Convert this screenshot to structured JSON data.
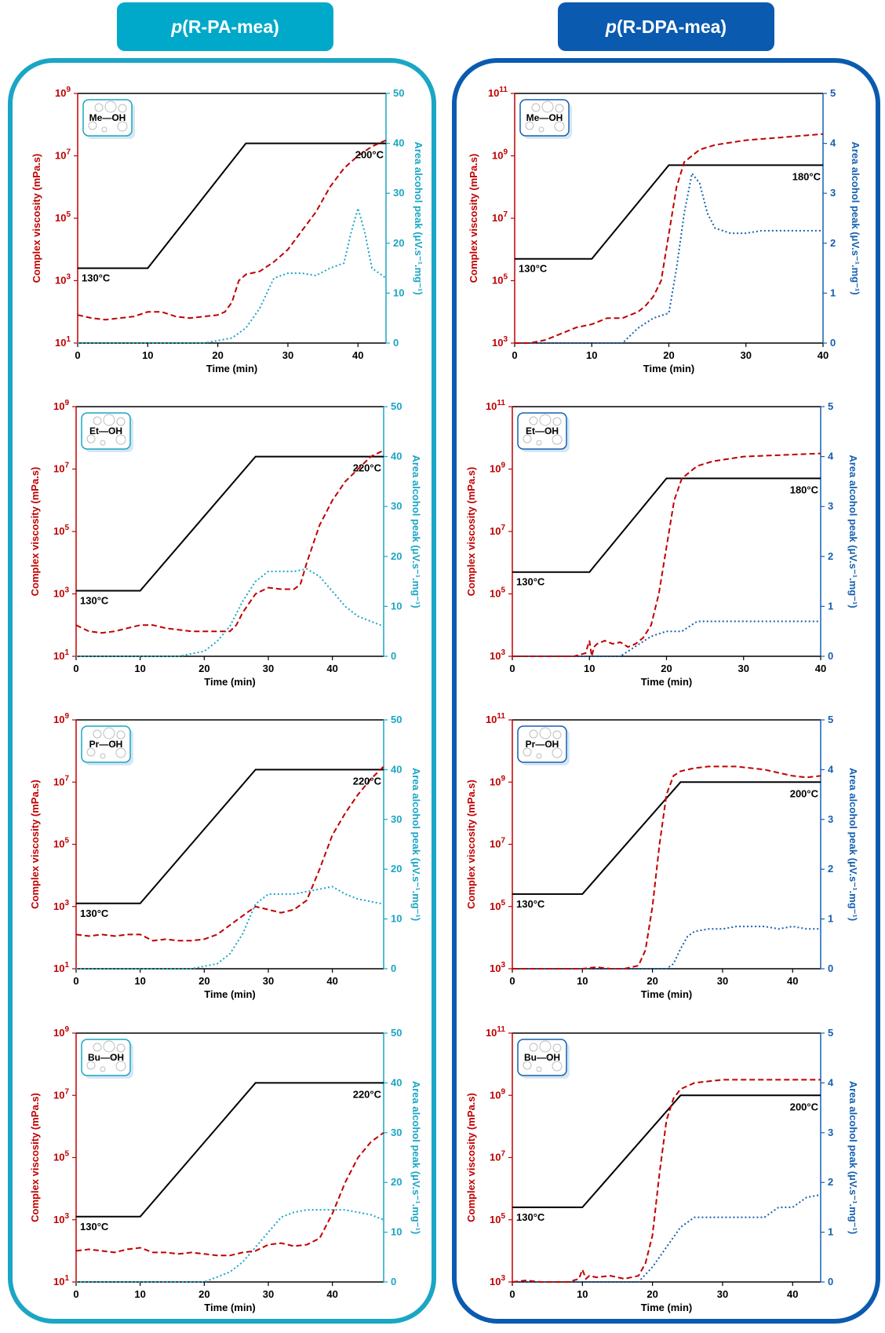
{
  "header": {
    "left": {
      "prefix": "p",
      "label": "(R-PA-mea)",
      "color": "#00a7c7"
    },
    "right": {
      "prefix": "p",
      "label": "(R-DPA-mea)",
      "color": "#0a5bb0"
    }
  },
  "colors": {
    "viscosity": "#c00000",
    "temperature": "#000000",
    "alcohol_left": "#1aa6c4",
    "alcohol_right": "#1560b0"
  },
  "chart_data": [
    {
      "type": "line",
      "panel": "R-PA-mea Me-OH",
      "badge": "Me—OH",
      "xlabel": "Time (min)",
      "ylabel": "Complex viscosity (mPa.s)",
      "y2label": "Area alcohol peak (μV.s⁻¹.mg⁻¹)",
      "xlim": [
        0,
        44
      ],
      "xticks": [
        0,
        10,
        20,
        30,
        40
      ],
      "ylim_log": [
        1,
        9
      ],
      "yticks_log": [
        1,
        3,
        5,
        7,
        9
      ],
      "y2lim": [
        0,
        50
      ],
      "y2ticks": [
        0,
        10,
        20,
        30,
        40,
        50
      ],
      "temp_labels": {
        "start": "130°C",
        "end": "200°C"
      },
      "temperature": {
        "x": [
          0,
          10,
          24,
          44
        ],
        "logy": [
          3.4,
          3.4,
          7.4,
          7.4
        ]
      },
      "viscosity": {
        "x": [
          0,
          2,
          4,
          6,
          8,
          10,
          12,
          14,
          16,
          18,
          20,
          21,
          22,
          23,
          24,
          26,
          28,
          30,
          32,
          34,
          36,
          38,
          40,
          42,
          44
        ],
        "logy": [
          1.9,
          1.8,
          1.75,
          1.8,
          1.85,
          2.0,
          2.0,
          1.85,
          1.8,
          1.85,
          1.9,
          2.0,
          2.3,
          3.0,
          3.2,
          3.3,
          3.6,
          4.0,
          4.6,
          5.2,
          6.0,
          6.6,
          7.0,
          7.3,
          7.5
        ]
      },
      "alcohol": {
        "x": [
          0,
          14,
          18,
          22,
          24,
          26,
          28,
          30,
          32,
          34,
          36,
          37,
          38,
          39,
          40,
          41,
          42,
          44
        ],
        "y": [
          0,
          0,
          0,
          1,
          3,
          7,
          13,
          14,
          14,
          13.5,
          15,
          15.5,
          16,
          22,
          27,
          22,
          15,
          13
        ]
      }
    },
    {
      "type": "line",
      "panel": "R-DPA-mea Me-OH",
      "badge": "Me—OH",
      "xlabel": "Time (min)",
      "ylabel": "Complex viscosity (mPa.s)",
      "y2label": "Area alcohol peak (μV.s⁻¹.mg⁻¹)",
      "xlim": [
        0,
        40
      ],
      "xticks": [
        0,
        10,
        20,
        30,
        40
      ],
      "ylim_log": [
        3,
        11
      ],
      "yticks_log": [
        3,
        5,
        7,
        9,
        11
      ],
      "y2lim": [
        0,
        5
      ],
      "y2ticks": [
        0,
        1,
        2,
        3,
        4,
        5
      ],
      "temp_labels": {
        "start": "130°C",
        "end": "180°C"
      },
      "temperature": {
        "x": [
          0,
          10,
          20,
          40
        ],
        "logy": [
          5.7,
          5.7,
          8.7,
          8.7
        ]
      },
      "viscosity": {
        "x": [
          0,
          2,
          4,
          6,
          8,
          10,
          12,
          14,
          16,
          17,
          18,
          19,
          20,
          21,
          22,
          24,
          26,
          30,
          35,
          40
        ],
        "logy": [
          3.0,
          3.0,
          3.1,
          3.3,
          3.5,
          3.6,
          3.8,
          3.8,
          4.0,
          4.2,
          4.5,
          5.0,
          6.5,
          8.0,
          8.8,
          9.2,
          9.35,
          9.5,
          9.6,
          9.7
        ]
      },
      "alcohol": {
        "x": [
          0,
          14,
          16,
          18,
          20,
          21,
          22,
          23,
          24,
          25,
          26,
          28,
          30,
          32,
          35,
          40
        ],
        "y": [
          0,
          0,
          0.3,
          0.5,
          0.6,
          1.5,
          2.6,
          3.4,
          3.2,
          2.6,
          2.3,
          2.2,
          2.2,
          2.25,
          2.25,
          2.25
        ]
      }
    },
    {
      "type": "line",
      "panel": "R-PA-mea Et-OH",
      "badge": "Et—OH",
      "xlabel": "Time (min)",
      "ylabel": "Complex viscosity (mPa.s)",
      "y2label": "Area alcohol peak (μV.s⁻¹.mg⁻¹)",
      "xlim": [
        0,
        48
      ],
      "xticks": [
        0,
        10,
        20,
        30,
        40
      ],
      "ylim_log": [
        1,
        9
      ],
      "yticks_log": [
        1,
        3,
        5,
        7,
        9
      ],
      "y2lim": [
        0,
        50
      ],
      "y2ticks": [
        0,
        10,
        20,
        30,
        40,
        50
      ],
      "temp_labels": {
        "start": "130°C",
        "end": "220°C"
      },
      "temperature": {
        "x": [
          0,
          10,
          28,
          48
        ],
        "logy": [
          3.1,
          3.1,
          7.4,
          7.4
        ]
      },
      "viscosity": {
        "x": [
          0,
          2,
          4,
          6,
          8,
          10,
          12,
          14,
          16,
          18,
          20,
          22,
          24,
          25,
          26,
          28,
          30,
          32,
          34,
          35,
          36,
          38,
          40,
          42,
          44,
          46,
          48
        ],
        "logy": [
          2.0,
          1.8,
          1.75,
          1.8,
          1.9,
          2.0,
          2.0,
          1.9,
          1.85,
          1.8,
          1.8,
          1.8,
          1.8,
          2.0,
          2.4,
          3.0,
          3.2,
          3.15,
          3.15,
          3.3,
          4.0,
          5.2,
          6.0,
          6.6,
          7.0,
          7.4,
          7.6
        ]
      },
      "alcohol": {
        "x": [
          0,
          14,
          16,
          20,
          22,
          24,
          26,
          28,
          30,
          32,
          34,
          36,
          38,
          40,
          42,
          44,
          46,
          48
        ],
        "y": [
          0,
          0,
          0,
          1,
          3,
          6,
          11,
          15,
          17,
          17,
          17,
          17.5,
          16,
          13,
          10,
          8,
          7,
          6
        ]
      }
    },
    {
      "type": "line",
      "panel": "R-DPA-mea Et-OH",
      "badge": "Et—OH",
      "xlabel": "Time (min)",
      "ylabel": "Complex viscosity (mPa.s)",
      "y2label": "Area alcohol peak (μV.s⁻¹.mg⁻¹)",
      "xlim": [
        0,
        40
      ],
      "xticks": [
        0,
        10,
        20,
        30,
        40
      ],
      "ylim_log": [
        3,
        11
      ],
      "yticks_log": [
        3,
        5,
        7,
        9,
        11
      ],
      "y2lim": [
        0,
        5
      ],
      "y2ticks": [
        0,
        1,
        2,
        3,
        4,
        5
      ],
      "temp_labels": {
        "start": "130°C",
        "end": "180°C"
      },
      "temperature": {
        "x": [
          0,
          10,
          20,
          40
        ],
        "logy": [
          5.7,
          5.7,
          8.7,
          8.7
        ]
      },
      "viscosity": {
        "x": [
          0,
          5,
          8,
          9.5,
          10,
          10.3,
          10.6,
          11,
          12,
          13,
          14,
          15,
          16,
          17,
          18,
          19,
          20,
          21,
          22,
          24,
          26,
          30,
          35,
          40
        ],
        "logy": [
          3.0,
          3.0,
          3.0,
          3.1,
          3.5,
          3.0,
          3.3,
          3.4,
          3.5,
          3.4,
          3.45,
          3.3,
          3.4,
          3.6,
          4.0,
          5.0,
          6.5,
          8.0,
          8.7,
          9.1,
          9.25,
          9.4,
          9.45,
          9.5
        ]
      },
      "alcohol": {
        "x": [
          0,
          14,
          16,
          18,
          20,
          22,
          23,
          24,
          30,
          35,
          40
        ],
        "y": [
          0,
          0,
          0.2,
          0.4,
          0.5,
          0.5,
          0.6,
          0.7,
          0.7,
          0.7,
          0.7
        ]
      }
    },
    {
      "type": "line",
      "panel": "R-PA-mea Pr-OH",
      "badge": "Pr—OH",
      "xlabel": "Time (min)",
      "ylabel": "Complex viscosity (mPa.s)",
      "y2label": "Area alcohol peak (μV.s⁻¹.mg⁻¹)",
      "xlim": [
        0,
        48
      ],
      "xticks": [
        0,
        10,
        20,
        30,
        40
      ],
      "ylim_log": [
        1,
        9
      ],
      "yticks_log": [
        1,
        3,
        5,
        7,
        9
      ],
      "y2lim": [
        0,
        50
      ],
      "y2ticks": [
        0,
        10,
        20,
        30,
        40,
        50
      ],
      "temp_labels": {
        "start": "130°C",
        "end": "220°C"
      },
      "temperature": {
        "x": [
          0,
          10,
          28,
          48
        ],
        "logy": [
          3.1,
          3.1,
          7.4,
          7.4
        ]
      },
      "viscosity": {
        "x": [
          0,
          2,
          4,
          6,
          8,
          10,
          12,
          14,
          16,
          18,
          20,
          22,
          24,
          26,
          28,
          30,
          32,
          34,
          36,
          38,
          40,
          42,
          44,
          46,
          48
        ],
        "logy": [
          2.1,
          2.05,
          2.1,
          2.05,
          2.1,
          2.1,
          1.9,
          1.95,
          1.9,
          1.9,
          1.95,
          2.1,
          2.4,
          2.7,
          3.0,
          2.9,
          2.8,
          2.9,
          3.2,
          4.2,
          5.3,
          6.0,
          6.6,
          7.1,
          7.5
        ]
      },
      "alcohol": {
        "x": [
          0,
          18,
          20,
          22,
          24,
          26,
          28,
          30,
          32,
          34,
          36,
          38,
          40,
          42,
          44,
          46,
          48
        ],
        "y": [
          0,
          0,
          0.5,
          1,
          3,
          7,
          13,
          15,
          15,
          15,
          15.5,
          16,
          16.5,
          15,
          14,
          13.5,
          13
        ]
      }
    },
    {
      "type": "line",
      "panel": "R-DPA-mea Pr-OH",
      "badge": "Pr—OH",
      "xlabel": "Time (min)",
      "ylabel": "Complex viscosity (mPa.s)",
      "y2label": "Area alcohol peak (μV.s⁻¹.mg⁻¹)",
      "xlim": [
        0,
        44
      ],
      "xticks": [
        0,
        10,
        20,
        30,
        40
      ],
      "ylim_log": [
        3,
        11
      ],
      "yticks_log": [
        3,
        5,
        7,
        9,
        11
      ],
      "y2lim": [
        0,
        5
      ],
      "y2ticks": [
        0,
        1,
        2,
        3,
        4,
        5
      ],
      "temp_labels": {
        "start": "130°C",
        "end": "200°C"
      },
      "temperature": {
        "x": [
          0,
          10,
          24,
          44
        ],
        "logy": [
          5.4,
          5.4,
          9.0,
          9.0
        ]
      },
      "viscosity": {
        "x": [
          0,
          10,
          12,
          14,
          16,
          18,
          19,
          20,
          21,
          22,
          23,
          24,
          26,
          28,
          30,
          32,
          34,
          36,
          38,
          40,
          42,
          44
        ],
        "logy": [
          3.0,
          3.0,
          3.05,
          3.0,
          3.0,
          3.1,
          3.6,
          5.0,
          7.0,
          8.6,
          9.2,
          9.35,
          9.45,
          9.5,
          9.5,
          9.5,
          9.45,
          9.4,
          9.3,
          9.2,
          9.15,
          9.2
        ]
      },
      "alcohol": {
        "x": [
          0,
          22,
          23,
          24,
          25,
          26,
          28,
          30,
          32,
          34,
          36,
          38,
          40,
          42,
          44
        ],
        "y": [
          0,
          0,
          0.1,
          0.4,
          0.65,
          0.75,
          0.8,
          0.8,
          0.85,
          0.85,
          0.85,
          0.8,
          0.85,
          0.8,
          0.8
        ]
      }
    },
    {
      "type": "line",
      "panel": "R-PA-mea Bu-OH",
      "badge": "Bu—OH",
      "xlabel": "Time (min)",
      "ylabel": "Complex viscosity (mPa.s)",
      "y2label": "Area alcohol peak (μV.s⁻¹.mg⁻¹)",
      "xlim": [
        0,
        48
      ],
      "xticks": [
        0,
        10,
        20,
        30,
        40
      ],
      "ylim_log": [
        1,
        9
      ],
      "yticks_log": [
        1,
        3,
        5,
        7,
        9
      ],
      "y2lim": [
        0,
        50
      ],
      "y2ticks": [
        0,
        10,
        20,
        30,
        40,
        50
      ],
      "temp_labels": {
        "start": "130°C",
        "end": "220°C"
      },
      "temperature": {
        "x": [
          0,
          10,
          28,
          48
        ],
        "logy": [
          3.1,
          3.1,
          7.4,
          7.4
        ]
      },
      "viscosity": {
        "x": [
          0,
          2,
          4,
          6,
          8,
          10,
          12,
          14,
          16,
          18,
          20,
          22,
          24,
          26,
          28,
          30,
          32,
          34,
          36,
          38,
          40,
          42,
          44,
          46,
          48
        ],
        "logy": [
          2.0,
          2.05,
          2.0,
          1.95,
          2.05,
          2.1,
          1.95,
          1.95,
          1.9,
          1.95,
          1.9,
          1.85,
          1.85,
          1.95,
          2.0,
          2.2,
          2.25,
          2.15,
          2.2,
          2.4,
          3.2,
          4.2,
          5.0,
          5.5,
          5.8
        ]
      },
      "alcohol": {
        "x": [
          0,
          20,
          22,
          24,
          26,
          28,
          30,
          32,
          34,
          36,
          38,
          40,
          42,
          44,
          46,
          48
        ],
        "y": [
          0,
          0,
          1,
          2,
          4,
          7,
          10,
          13,
          14,
          14.5,
          14.5,
          14.5,
          14.5,
          14,
          13.5,
          12.5
        ]
      }
    },
    {
      "type": "line",
      "panel": "R-DPA-mea Bu-OH",
      "badge": "Bu—OH",
      "xlabel": "Time (min)",
      "ylabel": "Complex viscosity (mPa.s)",
      "y2label": "Area alcohol peak (μV.s⁻¹.mg⁻¹)",
      "xlim": [
        0,
        44
      ],
      "xticks": [
        0,
        10,
        20,
        30,
        40
      ],
      "ylim_log": [
        3,
        11
      ],
      "yticks_log": [
        3,
        5,
        7,
        9,
        11
      ],
      "y2lim": [
        0,
        5
      ],
      "y2ticks": [
        0,
        1,
        2,
        3,
        4,
        5
      ],
      "temp_labels": {
        "start": "130°C",
        "end": "200°C"
      },
      "temperature": {
        "x": [
          0,
          10,
          24,
          44
        ],
        "logy": [
          5.4,
          5.4,
          9.0,
          9.0
        ]
      },
      "viscosity": {
        "x": [
          0,
          2,
          4,
          6,
          8,
          9.5,
          10,
          10.5,
          11,
          12,
          14,
          16,
          18,
          19,
          20,
          21,
          22,
          23,
          24,
          26,
          28,
          30,
          35,
          40,
          44
        ],
        "logy": [
          3.0,
          3.05,
          3.0,
          3.0,
          3.0,
          3.1,
          3.4,
          3.1,
          3.2,
          3.15,
          3.2,
          3.1,
          3.2,
          3.6,
          4.5,
          6.5,
          8.2,
          8.9,
          9.2,
          9.4,
          9.45,
          9.5,
          9.5,
          9.5,
          9.5
        ]
      },
      "alcohol": {
        "x": [
          0,
          18,
          20,
          22,
          24,
          26,
          28,
          30,
          32,
          34,
          36,
          38,
          40,
          42,
          44
        ],
        "y": [
          0,
          0,
          0.3,
          0.7,
          1.1,
          1.3,
          1.3,
          1.3,
          1.3,
          1.3,
          1.3,
          1.5,
          1.5,
          1.7,
          1.75
        ]
      }
    }
  ]
}
